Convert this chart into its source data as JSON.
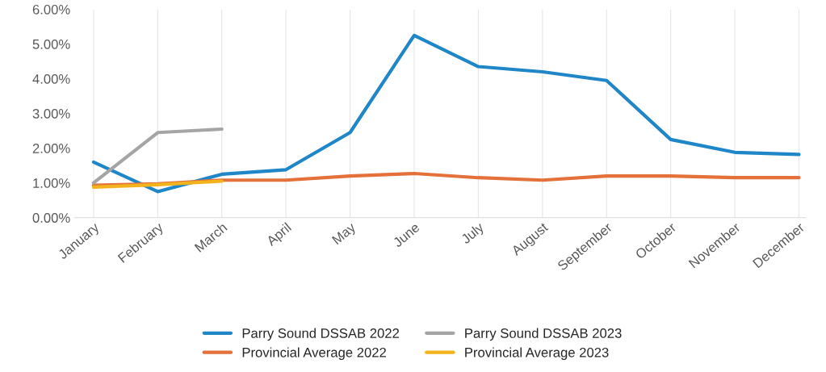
{
  "chart_data": {
    "type": "line",
    "categories": [
      "January",
      "February",
      "March",
      "April",
      "May",
      "June",
      "July",
      "August",
      "September",
      "October",
      "November",
      "December"
    ],
    "series": [
      {
        "name": "Parry Sound DSSAB 2022",
        "color": "#1f86c8",
        "values": [
          1.6,
          0.75,
          1.25,
          1.38,
          2.45,
          5.25,
          4.35,
          4.2,
          3.95,
          2.25,
          1.88,
          1.82
        ]
      },
      {
        "name": "Provincial Average 2022",
        "color": "#e4703a",
        "values": [
          0.93,
          0.97,
          1.08,
          1.08,
          1.2,
          1.27,
          1.15,
          1.08,
          1.2,
          1.2,
          1.15,
          1.15
        ]
      },
      {
        "name": "Parry Sound DSSAB 2023",
        "color": "#a5a5a5",
        "values": [
          1.0,
          2.45,
          2.55,
          null,
          null,
          null,
          null,
          null,
          null,
          null,
          null,
          null
        ]
      },
      {
        "name": "Provincial Average 2023",
        "color": "#f2b31c",
        "values": [
          0.88,
          0.95,
          1.05,
          null,
          null,
          null,
          null,
          null,
          null,
          null,
          null,
          null
        ]
      }
    ],
    "ylim": [
      0,
      6
    ],
    "yticks": [
      {
        "value": 0,
        "label": "0.00%"
      },
      {
        "value": 1,
        "label": "1.00%"
      },
      {
        "value": 2,
        "label": "2.00%"
      },
      {
        "value": 3,
        "label": "3.00%"
      },
      {
        "value": 4,
        "label": "4.00%"
      },
      {
        "value": 5,
        "label": "5.00%"
      },
      {
        "value": 6,
        "label": "6.00%"
      }
    ],
    "grid": "x",
    "legend": "bottom",
    "marker": "none",
    "line_style": "solid"
  }
}
